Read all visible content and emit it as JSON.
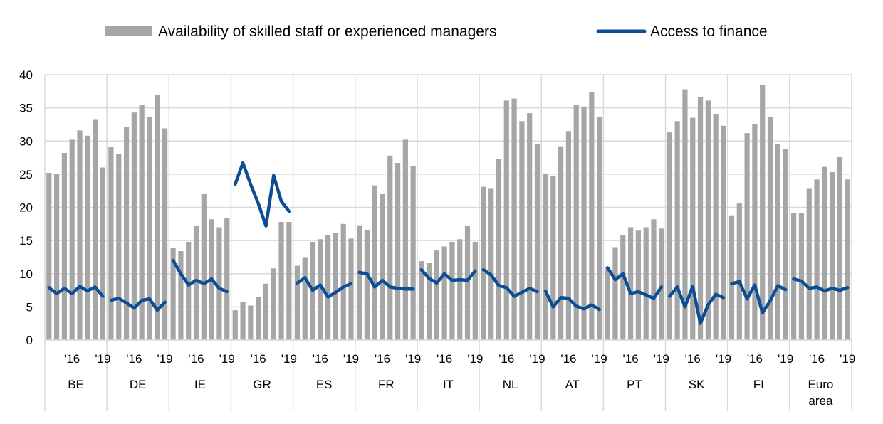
{
  "chart_data": {
    "type": "bar",
    "title": "",
    "xlabel": "",
    "ylabel": "",
    "ylim": [
      0,
      40
    ],
    "yticks": [
      "0",
      "5",
      "10",
      "15",
      "20",
      "25",
      "30",
      "35",
      "40"
    ],
    "grid": true,
    "legend_position": "top",
    "legend": {
      "bars": "Availability of skilled staff or experienced managers",
      "line": "Access to finance"
    },
    "colors": {
      "bars": "#a6a6a6",
      "line": "#0b4e96",
      "grid": "#d9d9d9"
    },
    "tick_labels": {
      "first": "'16",
      "last": "'19"
    },
    "groups": [
      {
        "label": [
          "BE"
        ],
        "bars": [
          25.2,
          25.0,
          28.2,
          30.2,
          31.6,
          30.8,
          33.3,
          26.0
        ],
        "line": [
          7.9,
          7.0,
          7.8,
          7.0,
          8.1,
          7.4,
          8.0,
          6.6
        ]
      },
      {
        "label": [
          "DE"
        ],
        "bars": [
          29.1,
          28.1,
          32.1,
          34.3,
          35.4,
          33.6,
          37.0,
          31.9
        ],
        "line": [
          6.0,
          6.3,
          5.6,
          4.8,
          6.0,
          6.2,
          4.5,
          5.7
        ]
      },
      {
        "label": [
          "IE"
        ],
        "bars": [
          13.9,
          13.4,
          14.8,
          17.2,
          22.1,
          18.2,
          17.0,
          18.4
        ],
        "line": [
          12.0,
          10.0,
          8.3,
          9.0,
          8.5,
          9.2,
          7.8,
          7.3
        ]
      },
      {
        "label": [
          "GR"
        ],
        "bars": [
          4.5,
          5.7,
          5.2,
          6.5,
          8.5,
          10.8,
          17.8,
          17.8
        ],
        "line": [
          23.5,
          26.7,
          23.5,
          20.6,
          17.2,
          24.8,
          20.9,
          19.4
        ]
      },
      {
        "label": [
          "ES"
        ],
        "bars": [
          11.2,
          12.5,
          14.8,
          15.2,
          15.8,
          16.1,
          17.5,
          15.3
        ],
        "line": [
          8.6,
          9.4,
          7.5,
          8.3,
          6.5,
          7.2,
          8.0,
          8.5
        ]
      },
      {
        "label": [
          "FR"
        ],
        "bars": [
          17.3,
          16.6,
          23.3,
          22.1,
          27.8,
          26.7,
          30.2,
          26.2
        ],
        "line": [
          10.2,
          10.0,
          8.0,
          9.0,
          8.0,
          7.8,
          7.7,
          7.7
        ]
      },
      {
        "label": [
          "IT"
        ],
        "bars": [
          11.9,
          11.6,
          13.5,
          14.1,
          14.8,
          15.2,
          17.2,
          14.8
        ],
        "line": [
          10.6,
          9.3,
          8.6,
          10.0,
          9.0,
          9.1,
          9.0,
          10.4
        ]
      },
      {
        "label": [
          "NL"
        ],
        "bars": [
          23.1,
          22.9,
          27.3,
          36.1,
          36.4,
          33.0,
          34.2,
          29.5
        ],
        "line": [
          10.6,
          9.8,
          8.2,
          7.9,
          6.6,
          7.2,
          7.8,
          7.3
        ]
      },
      {
        "label": [
          "AT"
        ],
        "bars": [
          25.1,
          24.7,
          29.2,
          31.5,
          35.5,
          35.2,
          37.4,
          33.6
        ],
        "line": [
          7.4,
          5.0,
          6.4,
          6.3,
          5.1,
          4.7,
          5.3,
          4.6
        ]
      },
      {
        "label": [
          "PT"
        ],
        "bars": [
          11.0,
          14.0,
          15.8,
          17.0,
          16.5,
          17.0,
          18.2,
          16.8
        ],
        "line": [
          10.9,
          9.1,
          10.0,
          7.0,
          7.3,
          6.8,
          6.3,
          8.0
        ]
      },
      {
        "label": [
          "SK"
        ],
        "bars": [
          31.3,
          33.0,
          37.8,
          33.5,
          36.6,
          36.1,
          34.1,
          32.3
        ],
        "line": [
          6.6,
          8.0,
          5.0,
          8.1,
          2.5,
          5.3,
          6.9,
          6.4
        ]
      },
      {
        "label": [
          "FI"
        ],
        "bars": [
          18.8,
          20.6,
          31.2,
          32.5,
          38.5,
          33.6,
          29.6,
          28.8
        ],
        "line": [
          8.5,
          8.8,
          6.2,
          8.3,
          4.1,
          5.9,
          8.2,
          7.6
        ]
      },
      {
        "label": [
          "Euro",
          "area"
        ],
        "bars": [
          19.1,
          19.1,
          22.9,
          24.2,
          26.1,
          25.3,
          27.6,
          24.2
        ],
        "line": [
          9.2,
          8.9,
          7.8,
          8.0,
          7.4,
          7.8,
          7.5,
          7.9
        ]
      }
    ]
  }
}
